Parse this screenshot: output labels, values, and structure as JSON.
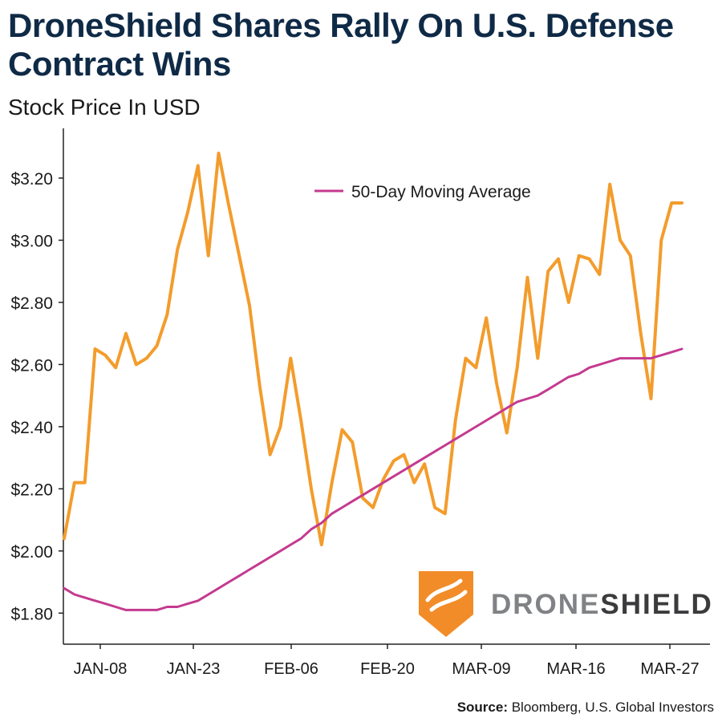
{
  "title": "DroneShield Shares Rally On U.S. Defense Contract Wins",
  "subtitle": "Stock Price In USD",
  "source": {
    "label": "Source:",
    "text": "Bloomberg, U.S. Global Investors"
  },
  "logo": {
    "part1": "DRONE",
    "part2": "SHIELD",
    "icon": "droneshield-shield-icon",
    "color": "#f28c28"
  },
  "chart_data": {
    "type": "line",
    "x_tick_labels": [
      "JAN-08",
      "JAN-23",
      "FEB-06",
      "FEB-20",
      "MAR-09",
      "MAR-16",
      "MAR-27"
    ],
    "ylim": [
      1.7,
      3.36
    ],
    "y_ticks": [
      1.8,
      2.0,
      2.2,
      2.4,
      2.6,
      2.8,
      3.0,
      3.2
    ],
    "y_tick_labels": [
      "$1.80",
      "$2.00",
      "$2.20",
      "$2.40",
      "$2.60",
      "$2.80",
      "$3.00",
      "$3.20"
    ],
    "legend": {
      "position": "top-center"
    },
    "series": [
      {
        "color": "#f39c2c",
        "values": [
          2.04,
          2.22,
          2.22,
          2.65,
          2.63,
          2.59,
          2.7,
          2.6,
          2.62,
          2.66,
          2.76,
          2.97,
          3.09,
          3.24,
          2.95,
          3.28,
          3.11,
          2.95,
          2.79,
          2.53,
          2.31,
          2.4,
          2.62,
          2.42,
          2.2,
          2.02,
          2.22,
          2.39,
          2.35,
          2.17,
          2.14,
          2.23,
          2.29,
          2.31,
          2.22,
          2.28,
          2.14,
          2.12,
          2.42,
          2.62,
          2.59,
          2.75,
          2.54,
          2.38,
          2.59,
          2.88,
          2.62,
          2.9,
          2.94,
          2.8,
          2.95,
          2.94,
          2.89,
          3.18,
          3.0,
          2.95,
          2.7,
          2.49,
          3.0,
          3.12,
          3.12
        ]
      },
      {
        "name": "50-Day Moving Average",
        "color": "#c43a8f",
        "values": [
          1.88,
          1.86,
          1.85,
          1.84,
          1.83,
          1.82,
          1.81,
          1.81,
          1.81,
          1.81,
          1.82,
          1.82,
          1.83,
          1.84,
          1.86,
          1.88,
          1.9,
          1.92,
          1.94,
          1.96,
          1.98,
          2.0,
          2.02,
          2.04,
          2.07,
          2.09,
          2.12,
          2.14,
          2.16,
          2.18,
          2.2,
          2.22,
          2.24,
          2.26,
          2.28,
          2.3,
          2.32,
          2.34,
          2.36,
          2.38,
          2.4,
          2.42,
          2.44,
          2.46,
          2.48,
          2.49,
          2.5,
          2.52,
          2.54,
          2.56,
          2.57,
          2.59,
          2.6,
          2.61,
          2.62,
          2.62,
          2.62,
          2.62,
          2.63,
          2.64,
          2.65
        ]
      }
    ]
  }
}
